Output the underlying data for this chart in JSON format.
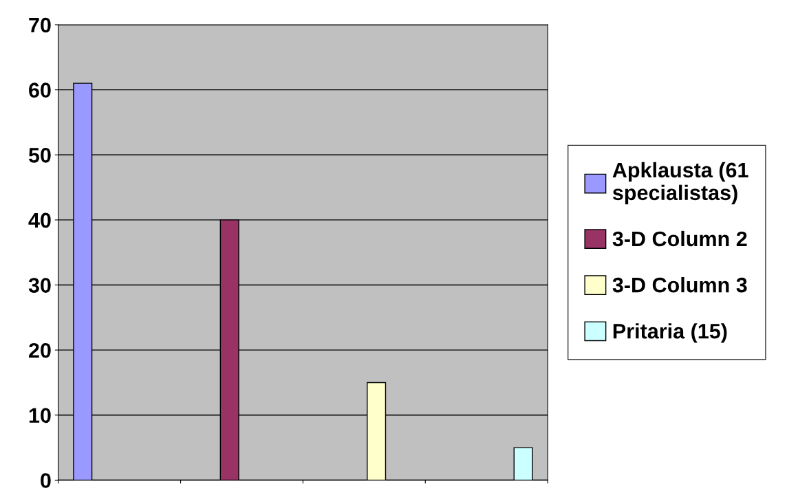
{
  "chart_data": {
    "type": "bar",
    "categories": [
      null,
      null,
      null,
      null
    ],
    "series": [
      {
        "name": "Apklausta (61\nspecialistas)",
        "color": "#9999ff",
        "values": [
          61,
          null,
          null,
          null
        ]
      },
      {
        "name": "3-D Column 2",
        "color": "#993366",
        "values": [
          null,
          40,
          null,
          null
        ]
      },
      {
        "name": "3-D Column 3",
        "color": "#ffffcc",
        "values": [
          null,
          null,
          15,
          null
        ]
      },
      {
        "name": "Pritaria (15)",
        "color": "#ccffff",
        "values": [
          null,
          null,
          null,
          5
        ]
      }
    ],
    "ylim": [
      0,
      70
    ],
    "yticks": [
      0,
      10,
      20,
      30,
      40,
      50,
      60,
      70
    ],
    "grid": "y",
    "legend": "right"
  }
}
